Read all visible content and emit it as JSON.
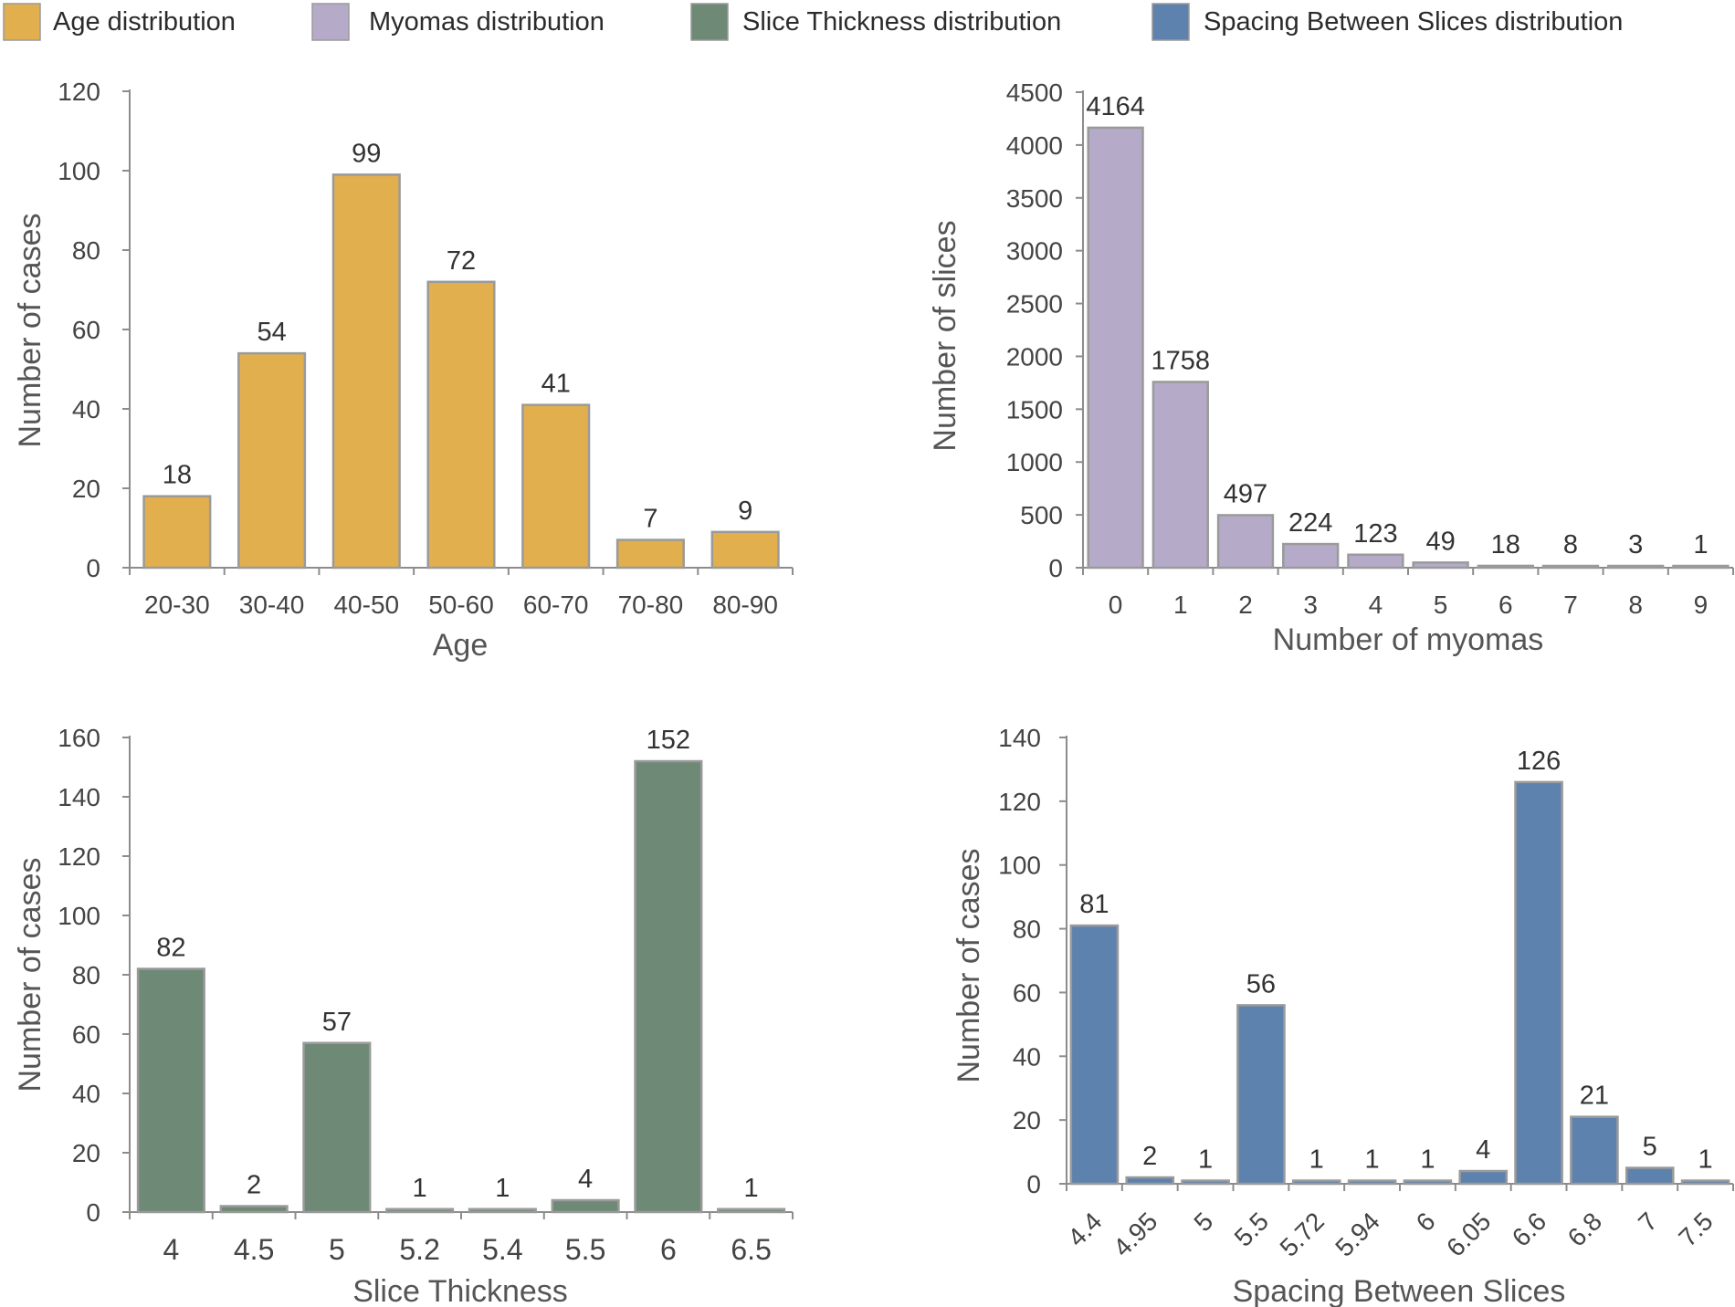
{
  "legend": [
    {
      "label": "Age distribution",
      "color": "#E2AF4F"
    },
    {
      "label": "Myomas distribution",
      "color": "#B5ABC9"
    },
    {
      "label": "Slice Thickness distribution",
      "color": "#6E8A76"
    },
    {
      "label": "Spacing Between Slices distribution",
      "color": "#5E82AE"
    }
  ],
  "chart_data": [
    {
      "type": "bar",
      "title": "Age distribution",
      "categories": [
        "20-30",
        "30-40",
        "40-50",
        "50-60",
        "60-70",
        "70-80",
        "80-90"
      ],
      "values": [
        18,
        54,
        99,
        72,
        41,
        7,
        9
      ],
      "xlabel": "Age",
      "ylabel": "Number of cases",
      "ylim": [
        0,
        120
      ],
      "yticks": [
        0,
        20,
        40,
        60,
        80,
        100,
        120
      ],
      "color": "#E2AF4F",
      "grid": false
    },
    {
      "type": "bar",
      "title": "Myomas distribution",
      "categories": [
        "0",
        "1",
        "2",
        "3",
        "4",
        "5",
        "6",
        "7",
        "8",
        "9"
      ],
      "values": [
        4164,
        1758,
        497,
        224,
        123,
        49,
        18,
        8,
        3,
        1
      ],
      "xlabel": "Number of myomas",
      "ylabel": "Number of slices",
      "ylim": [
        0,
        4500
      ],
      "yticks": [
        0,
        500,
        1000,
        1500,
        2000,
        2500,
        3000,
        3500,
        4000,
        4500
      ],
      "color": "#B5ABC9",
      "grid": false
    },
    {
      "type": "bar",
      "title": "Slice Thickness distribution",
      "categories": [
        "4",
        "4.5",
        "5",
        "5.2",
        "5.4",
        "5.5",
        "6",
        "6.5"
      ],
      "values": [
        82,
        2,
        57,
        1,
        1,
        4,
        152,
        1
      ],
      "xlabel": "Slice Thickness",
      "ylabel": "Number of cases",
      "ylim": [
        0,
        160
      ],
      "yticks": [
        0,
        20,
        40,
        60,
        80,
        100,
        120,
        140,
        160
      ],
      "color": "#6E8A76",
      "grid": false
    },
    {
      "type": "bar",
      "title": "Spacing Between Slices distribution",
      "categories": [
        "4.4",
        "4.95",
        "5",
        "5.5",
        "5.72",
        "5.94",
        "6",
        "6.05",
        "6.6",
        "6.8",
        "7",
        "7.5"
      ],
      "values": [
        81,
        2,
        1,
        56,
        1,
        1,
        1,
        4,
        126,
        21,
        5,
        1
      ],
      "xlabel": "Spacing Between Slices",
      "ylabel": "Number of cases",
      "ylim": [
        0,
        140
      ],
      "yticks": [
        0,
        20,
        40,
        60,
        80,
        100,
        120,
        140
      ],
      "color": "#5E82AE",
      "grid": false
    }
  ]
}
